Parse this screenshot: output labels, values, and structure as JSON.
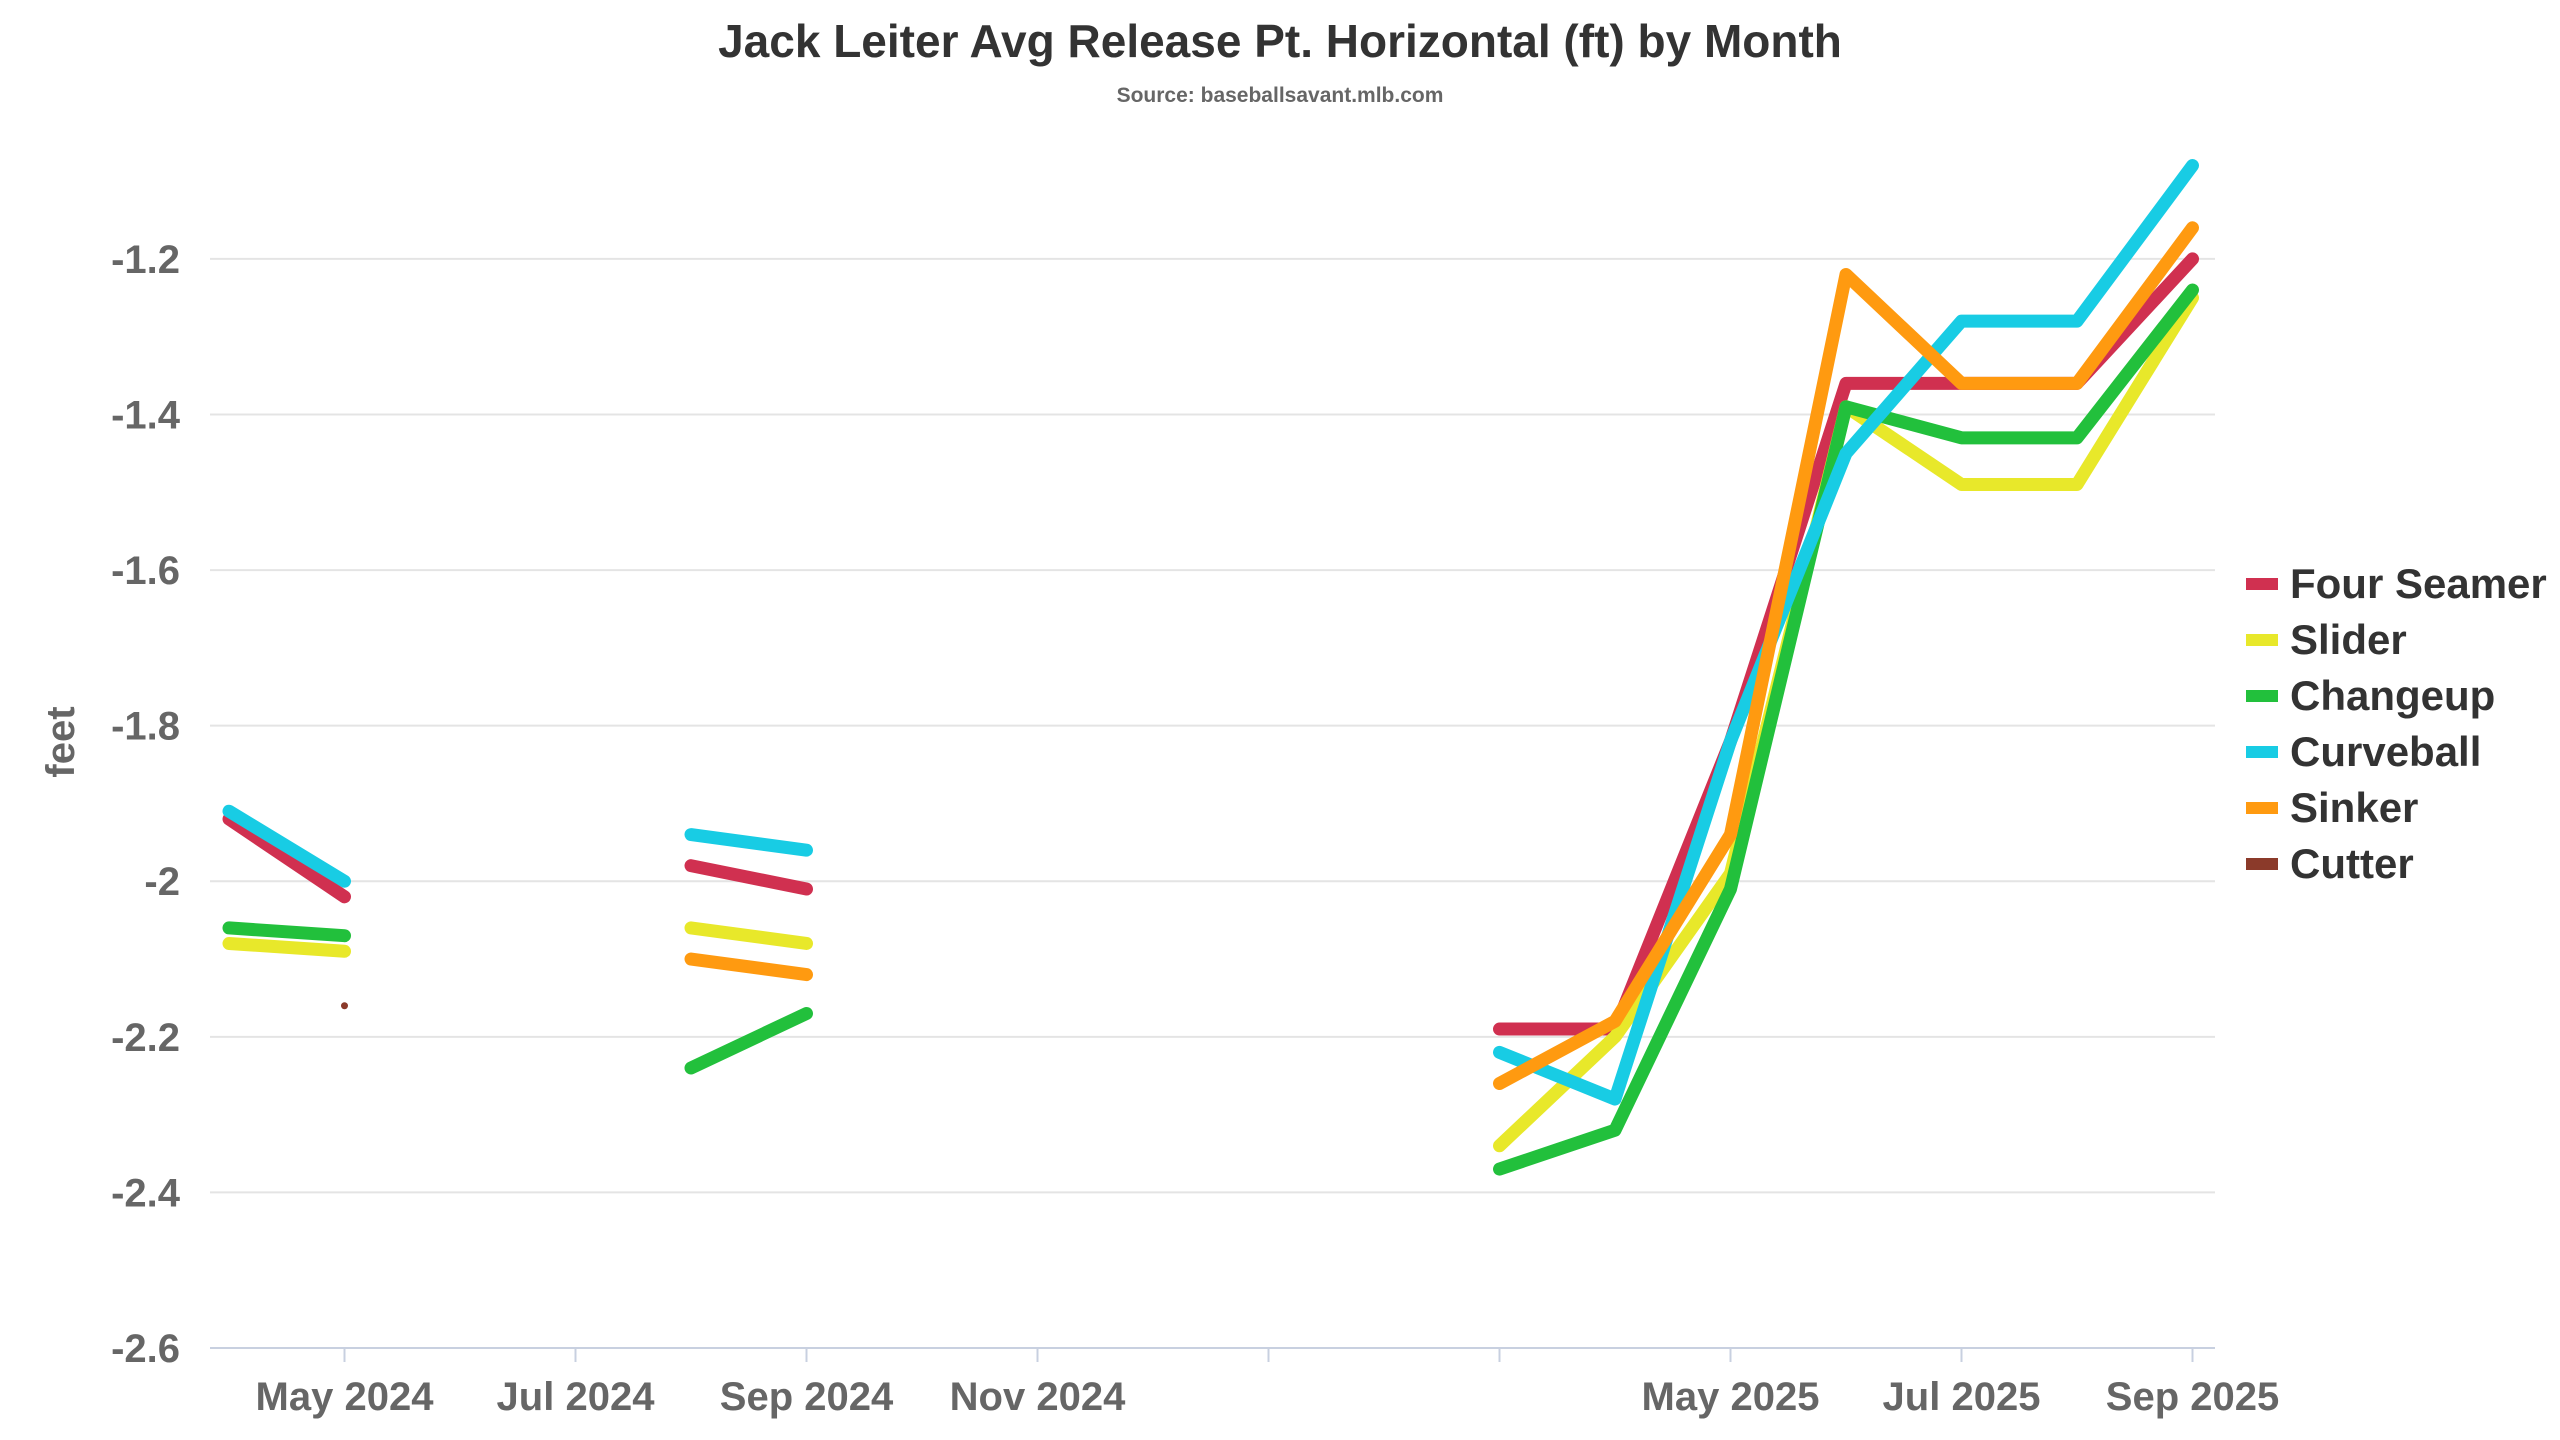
{
  "chart_data": {
    "type": "line",
    "title": "Jack Leiter Avg Release Pt. Horizontal (ft) by Month",
    "subtitle": "Source: baseballsavant.mlb.com",
    "xlabel": "",
    "ylabel": "feet",
    "ylim": [
      -2.6,
      -1.06
    ],
    "yticks": [
      -1.2,
      -1.4,
      -1.6,
      -1.8,
      -2,
      -2.2,
      -2.4,
      -2.6
    ],
    "ytick_labels": [
      "-1.2",
      "-1.4",
      "-1.6",
      "-1.8",
      "-2",
      "-2.2",
      "-2.4",
      "-2.6"
    ],
    "grid": true,
    "legend_position": "right",
    "months": [
      "2024-04",
      "2024-05",
      "2024-06",
      "2024-07",
      "2024-08",
      "2024-09",
      "2025-03",
      "2025-04",
      "2025-05",
      "2025-06",
      "2025-07",
      "2025-08",
      "2025-09"
    ],
    "xticks": [
      {
        "month": "2024-05",
        "label": "May 2024"
      },
      {
        "month": "2024-07",
        "label": "Jul 2024"
      },
      {
        "month": "2024-09",
        "label": "Sep 2024"
      },
      {
        "month": "2024-11",
        "label": "Nov 2024"
      },
      {
        "month": "2025-01",
        "label": ""
      },
      {
        "month": "2025-03",
        "label": ""
      },
      {
        "month": "2025-05",
        "label": "May 2025"
      },
      {
        "month": "2025-07",
        "label": "Jul 2025"
      },
      {
        "month": "2025-09",
        "label": "Sep 2025"
      }
    ],
    "series": [
      {
        "name": "Four Seamer",
        "color": "#d03050",
        "values": [
          -1.92,
          -2.02,
          null,
          null,
          -1.98,
          -2.01,
          -2.19,
          -2.19,
          -1.82,
          -1.36,
          -1.36,
          -1.36,
          -1.2
        ]
      },
      {
        "name": "Slider",
        "color": "#e8e82a",
        "values": [
          -2.08,
          -2.09,
          null,
          null,
          -2.06,
          -2.08,
          -2.34,
          -2.2,
          -1.99,
          -1.39,
          -1.49,
          -1.49,
          -1.25
        ]
      },
      {
        "name": "Changeup",
        "color": "#22c03c",
        "values": [
          -2.06,
          -2.07,
          null,
          null,
          -2.24,
          -2.17,
          -2.37,
          -2.32,
          -2.01,
          -1.39,
          -1.43,
          -1.43,
          -1.24
        ]
      },
      {
        "name": "Curveball",
        "color": "#18cce4",
        "values": [
          -1.91,
          -2.0,
          null,
          null,
          -1.94,
          -1.96,
          -2.22,
          -2.28,
          -1.82,
          -1.45,
          -1.28,
          -1.28,
          -1.08
        ]
      },
      {
        "name": "Sinker",
        "color": "#ff9a10",
        "values": [
          null,
          null,
          null,
          null,
          -2.1,
          -2.12,
          -2.26,
          -2.18,
          -1.94,
          -1.22,
          -1.36,
          -1.36,
          -1.16
        ]
      },
      {
        "name": "Cutter",
        "color": "#8b3a2a",
        "values": [
          null,
          -2.16,
          null,
          null,
          null,
          null,
          null,
          null,
          null,
          null,
          null,
          null,
          null
        ]
      }
    ]
  }
}
